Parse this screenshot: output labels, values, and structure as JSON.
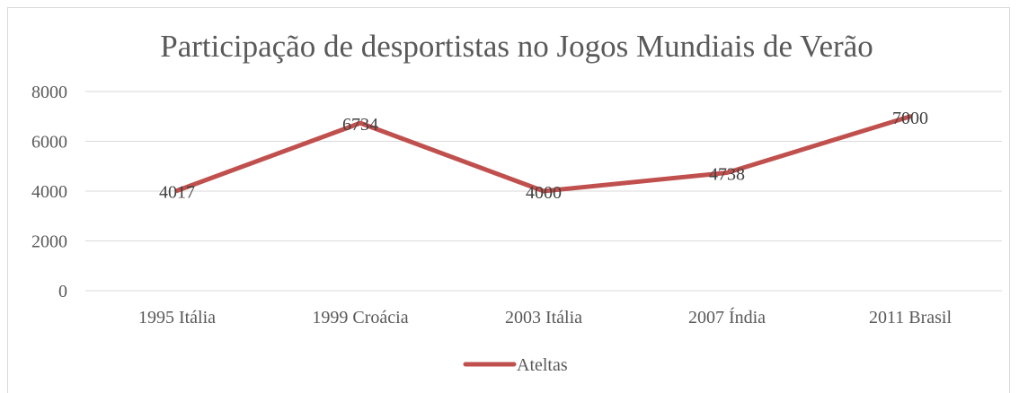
{
  "chart_data": {
    "type": "line",
    "title": "Participação de desportistas no Jogos Mundiais de Verão",
    "xlabel": "",
    "ylabel": "",
    "categories": [
      "1995 Itália",
      "1999 Croácia",
      "2003 Itália",
      "2007 Índia",
      "2011 Brasil"
    ],
    "series": [
      {
        "name": "Ateltas",
        "values": [
          4017,
          6734,
          4000,
          4738,
          7000
        ],
        "color": "#c0504d"
      }
    ],
    "ylim": [
      0,
      8000
    ],
    "yticks": [
      0,
      2000,
      4000,
      6000,
      8000
    ],
    "grid": true,
    "legend": "bottom",
    "data_labels": true
  }
}
